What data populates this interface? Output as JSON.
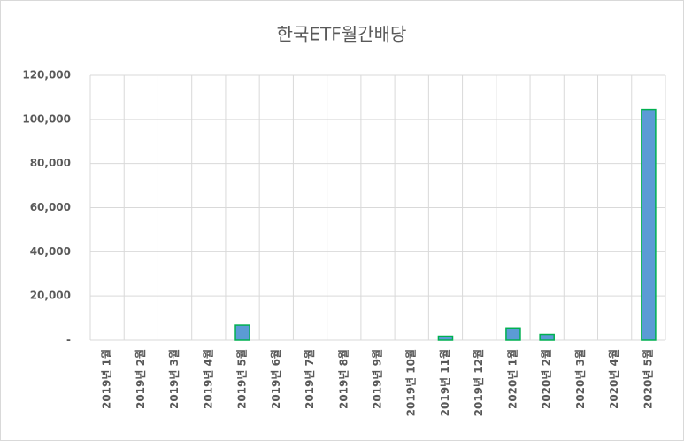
{
  "chart_data": {
    "type": "bar",
    "title": "한국ETF월간배당",
    "categories": [
      "2019년 1월",
      "2019년 2월",
      "2019년 3월",
      "2019년 4월",
      "2019년 5월",
      "2019년 6월",
      "2019년 7월",
      "2019년 8월",
      "2019년 9월",
      "2019년 10월",
      "2019년 11월",
      "2019년 12월",
      "2020년 1월",
      "2020년 2월",
      "2020년 3월",
      "2020년 4월",
      "2020년 5월"
    ],
    "values": [
      0,
      0,
      0,
      0,
      6800,
      0,
      0,
      0,
      0,
      0,
      1800,
      0,
      5500,
      2600,
      0,
      0,
      104500
    ],
    "color": "#5b9bd5",
    "edge_color": "#00b050",
    "ylim": [
      0,
      120000
    ],
    "yticks": [
      {
        "value": 0,
        "label": "-"
      },
      {
        "value": 20000,
        "label": "20,000"
      },
      {
        "value": 40000,
        "label": "40,000"
      },
      {
        "value": 60000,
        "label": "60,000"
      },
      {
        "value": 80000,
        "label": "80,000"
      },
      {
        "value": 100000,
        "label": "100,000"
      },
      {
        "value": 120000,
        "label": "120,000"
      }
    ],
    "grid": true
  }
}
